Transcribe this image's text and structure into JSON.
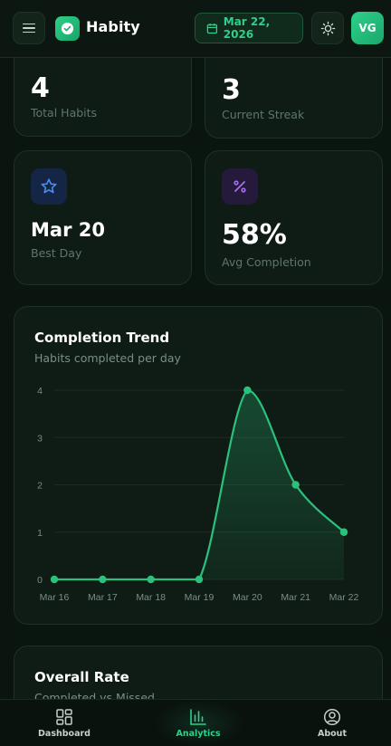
{
  "header": {
    "app_title": "Habity",
    "date_label": "Mar 22, 2026",
    "avatar_initials": "VG",
    "accent_color": "#2ed08a",
    "icons": {
      "menu": "menu-icon",
      "logo": "check-circle-icon",
      "date": "calendar-icon",
      "theme": "sun-icon"
    }
  },
  "stats": [
    {
      "value": "4",
      "label": "Total Habits"
    },
    {
      "value": "3",
      "label": "Current Streak"
    },
    {
      "value": "Mar 20",
      "label": "Best Day",
      "icon": "star-icon",
      "icon_color": "#4a8cf0"
    },
    {
      "value": "58%",
      "label": "Avg Completion",
      "icon": "percent-icon",
      "icon_color": "#a66ef0"
    }
  ],
  "trend_card": {
    "title": "Completion Trend",
    "subtitle": "Habits completed per day"
  },
  "chart_data": {
    "type": "area",
    "categories": [
      "Mar 16",
      "Mar 17",
      "Mar 18",
      "Mar 19",
      "Mar 20",
      "Mar 21",
      "Mar 22"
    ],
    "series": [
      {
        "values": [
          0,
          0,
          0,
          0,
          4,
          2,
          1
        ]
      }
    ],
    "yticks": [
      "0",
      "1",
      "2",
      "3",
      "4"
    ],
    "ylim": [
      0,
      4
    ],
    "grid": true,
    "line_color": "#2bc07c"
  },
  "rate_card": {
    "title": "Overall Rate",
    "subtitle": "Completed vs Missed"
  },
  "bottom_nav": [
    {
      "label": "Dashboard",
      "icon": "grid-icon"
    },
    {
      "label": "Analytics",
      "icon": "bar-chart-icon"
    },
    {
      "label": "About",
      "icon": "user-circle-icon"
    }
  ]
}
